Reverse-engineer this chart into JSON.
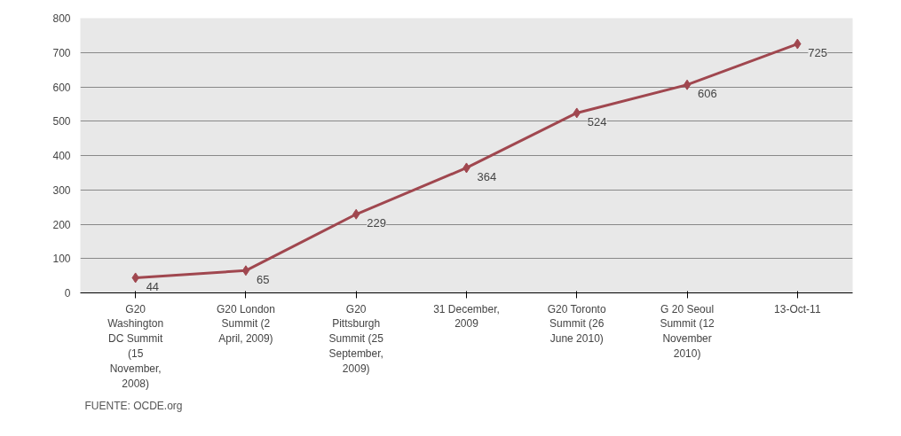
{
  "chart_data": {
    "type": "line",
    "categories": [
      "G20 Washington DC Summit (15 November, 2008)",
      "G20 London Summit (2 April, 2009)",
      "G20 Pittsburgh Summit (25 September, 2009)",
      "31 December, 2009",
      "G20 Toronto Summit (26 June 2010)",
      "G 20 Seoul Summit (12 November 2010)",
      "13-Oct-11"
    ],
    "series": [
      {
        "color": "#a0474f",
        "values": [
          44,
          65,
          229,
          364,
          524,
          606,
          725
        ]
      }
    ],
    "ylim": [
      0,
      800
    ],
    "yticks": [
      0,
      100,
      200,
      300,
      400,
      500,
      600,
      700,
      800
    ],
    "grid": "y",
    "marker": "diamond",
    "line_style": "solid",
    "data_labels": true,
    "annotations": [
      "FUENTE: OCDE.org"
    ]
  }
}
